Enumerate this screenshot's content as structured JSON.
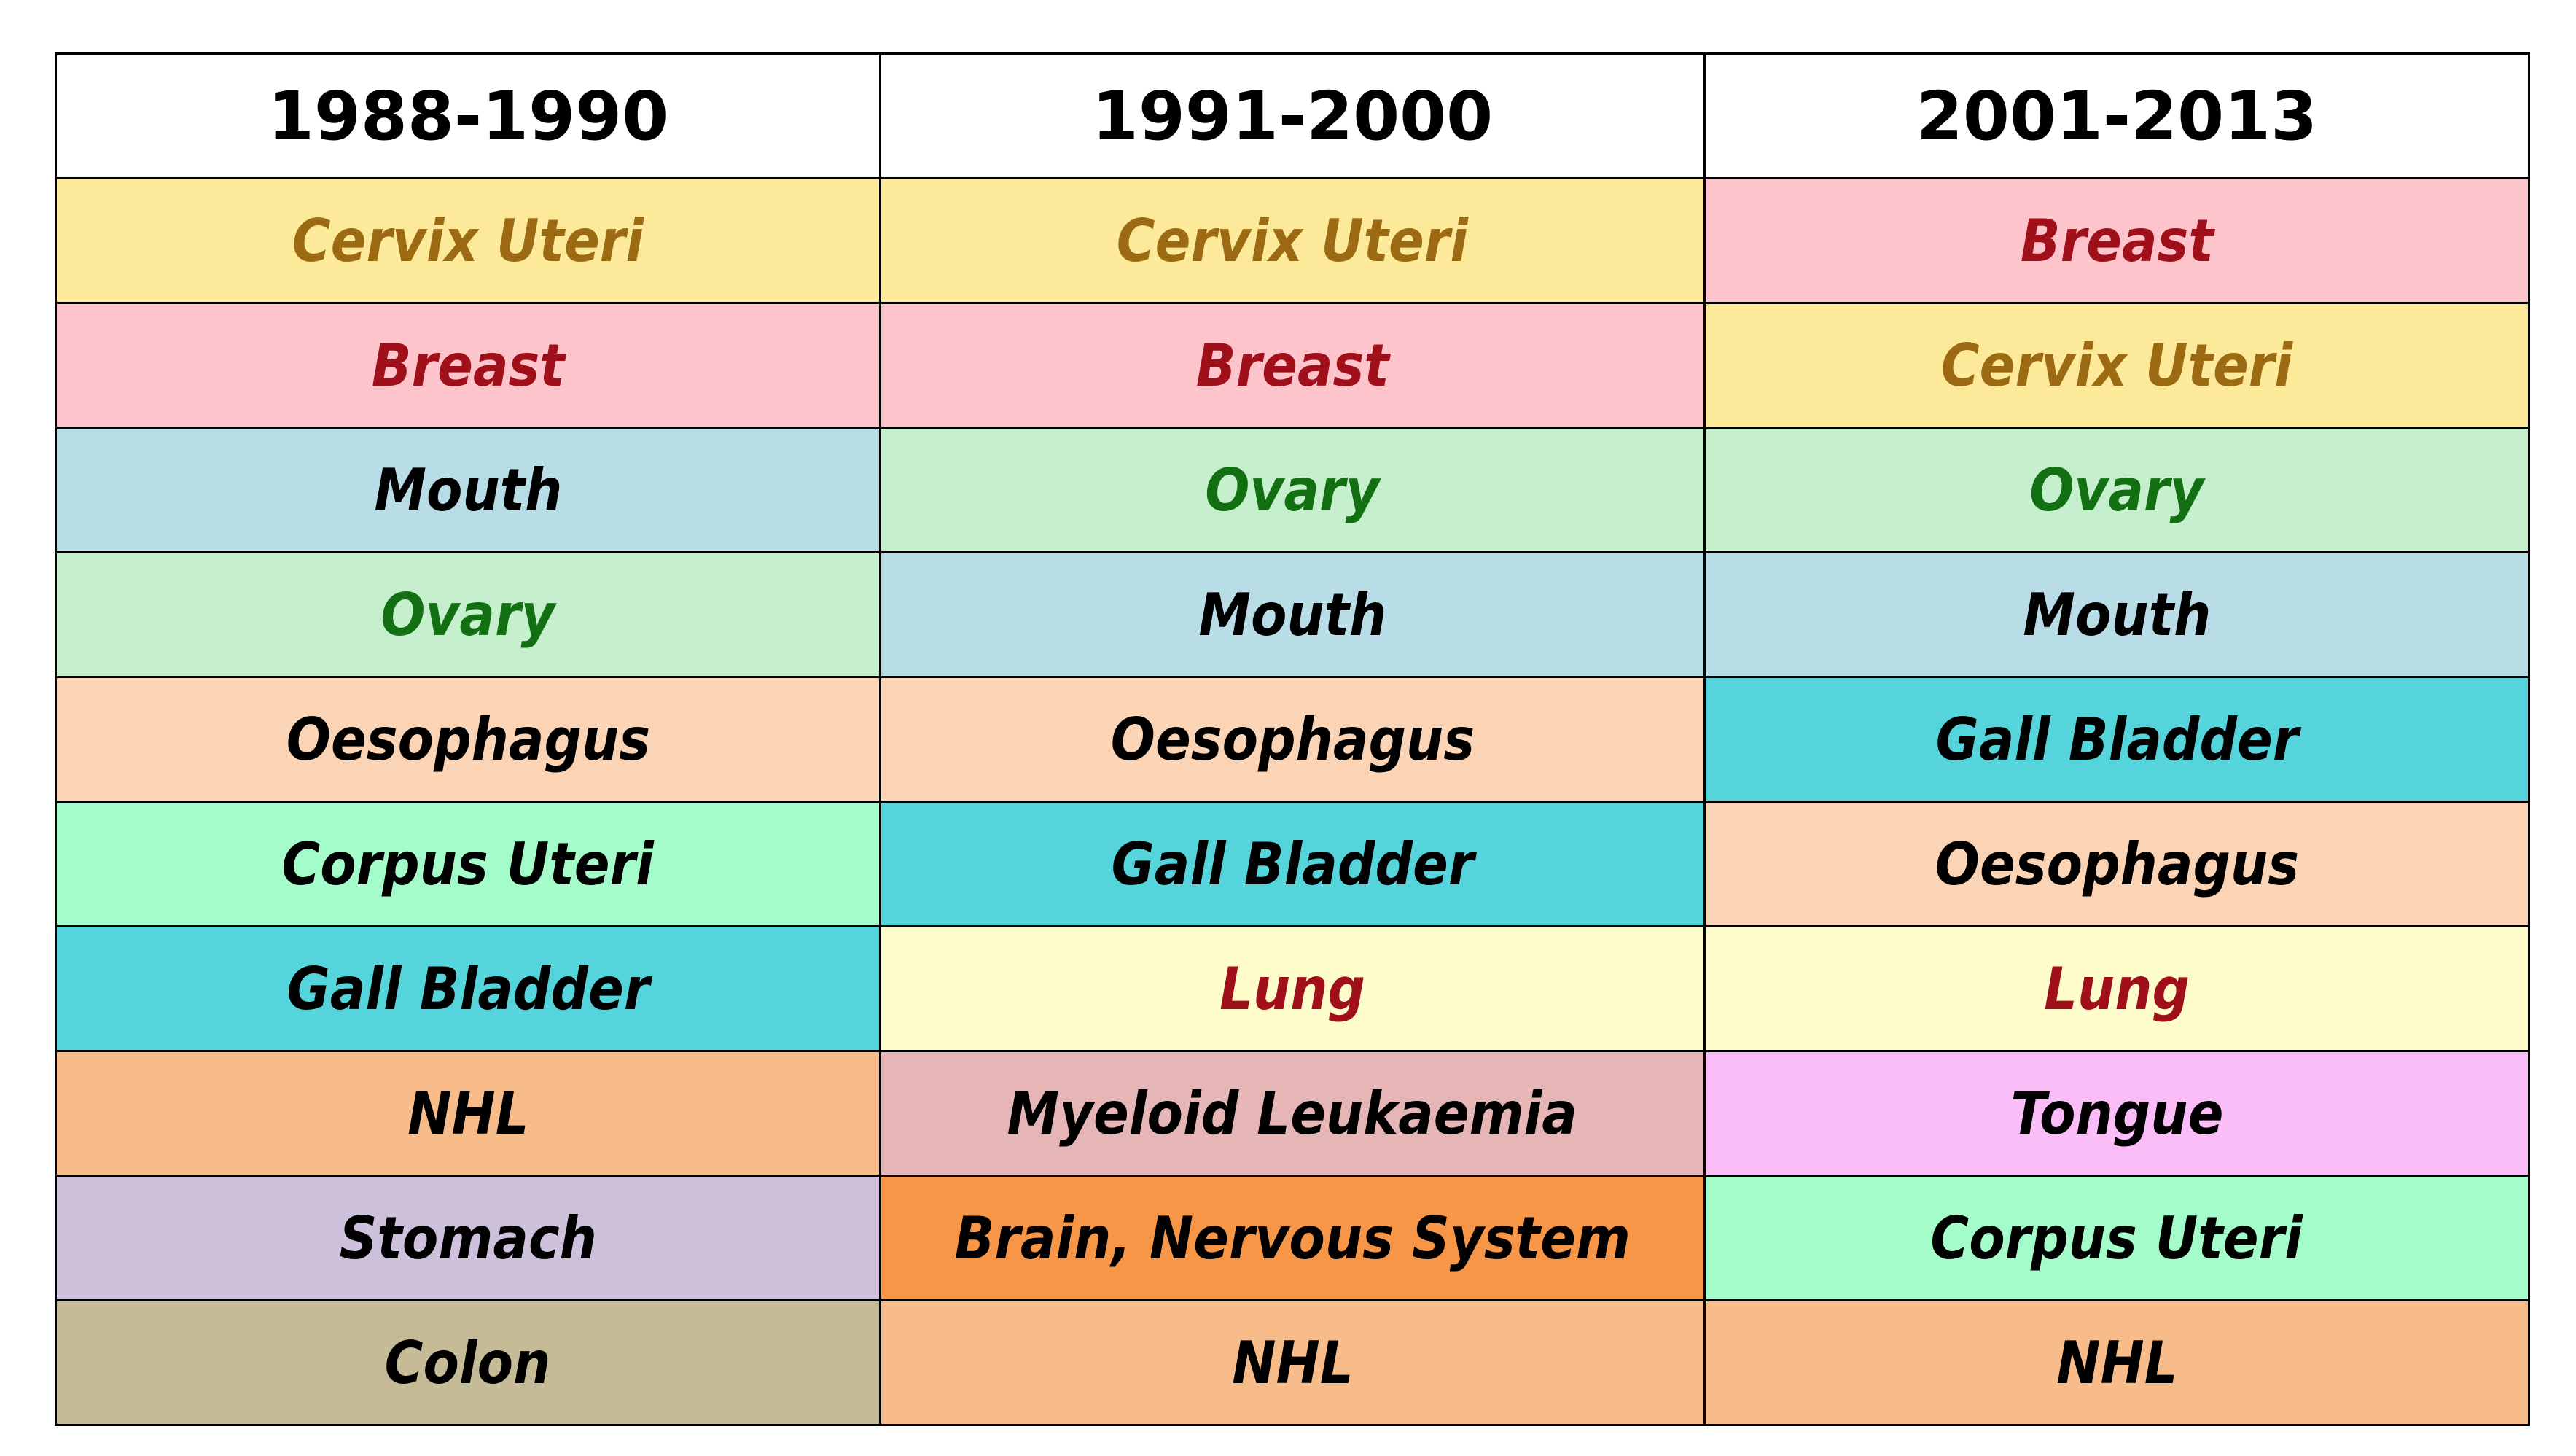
{
  "columns": [
    "1988-1990",
    "1991-2000",
    "2001-2013"
  ],
  "rows": [
    [
      {
        "label": "Cervix Uteri",
        "bg": "#FDE99A",
        "color": "#9C6A12"
      },
      {
        "label": "Cervix Uteri",
        "bg": "#FDE99A",
        "color": "#9C6A12"
      },
      {
        "label": "Breast",
        "bg": "#FDC4CC",
        "color": "#A0101A"
      }
    ],
    [
      {
        "label": "Breast",
        "bg": "#FDC4CC",
        "color": "#A0101A"
      },
      {
        "label": "Breast",
        "bg": "#FDC4CC",
        "color": "#A0101A"
      },
      {
        "label": "Cervix Uteri",
        "bg": "#FDE99A",
        "color": "#9C6A12"
      }
    ],
    [
      {
        "label": "Mouth",
        "bg": "#B9DDE7",
        "color": "#000000"
      },
      {
        "label": "Ovary",
        "bg": "#C5EFCD",
        "color": "#127012"
      },
      {
        "label": "Ovary",
        "bg": "#C5EFCD",
        "color": "#127012"
      }
    ],
    [
      {
        "label": "Ovary",
        "bg": "#C5EFCD",
        "color": "#127012"
      },
      {
        "label": "Mouth",
        "bg": "#B9DDE7",
        "color": "#000000"
      },
      {
        "label": "Mouth",
        "bg": "#B9DDE7",
        "color": "#000000"
      }
    ],
    [
      {
        "label": "Oesophagus",
        "bg": "#FBD4B6",
        "color": "#000000"
      },
      {
        "label": "Oesophagus",
        "bg": "#FBD4B6",
        "color": "#000000"
      },
      {
        "label": "Gall Bladder",
        "bg": "#56D4DC",
        "color": "#000000"
      }
    ],
    [
      {
        "label": "Corpus Uteri",
        "bg": "#A5FCCB",
        "color": "#000000"
      },
      {
        "label": "Gall Bladder",
        "bg": "#56D4DC",
        "color": "#000000"
      },
      {
        "label": "Oesophagus",
        "bg": "#FBD4B6",
        "color": "#000000"
      }
    ],
    [
      {
        "label": "Gall Bladder",
        "bg": "#56D4DC",
        "color": "#000000"
      },
      {
        "label": "Lung",
        "bg": "#FEFCCA",
        "color": "#A0101A"
      },
      {
        "label": "Lung",
        "bg": "#FEFCCA",
        "color": "#A0101A"
      }
    ],
    [
      {
        "label": "NHL",
        "bg": "#F8BB8A",
        "color": "#000000"
      },
      {
        "label": "Myeloid Leukaemia",
        "bg": "#E6B6B6",
        "color": "#000000"
      },
      {
        "label": "Tongue",
        "bg": "#FBBDF8",
        "color": "#000000"
      }
    ],
    [
      {
        "label": "Stomach",
        "bg": "#CDC1DB",
        "color": "#000000"
      },
      {
        "label": "Brain, Nervous System",
        "bg": "#F79646",
        "color": "#000000"
      },
      {
        "label": "Corpus Uteri",
        "bg": "#A5FCCB",
        "color": "#000000"
      }
    ],
    [
      {
        "label": "Colon",
        "bg": "#C5BC97",
        "color": "#000000"
      },
      {
        "label": "NHL",
        "bg": "#F8BB8A",
        "color": "#000000"
      },
      {
        "label": "NHL",
        "bg": "#F8BB8A",
        "color": "#000000"
      }
    ]
  ]
}
